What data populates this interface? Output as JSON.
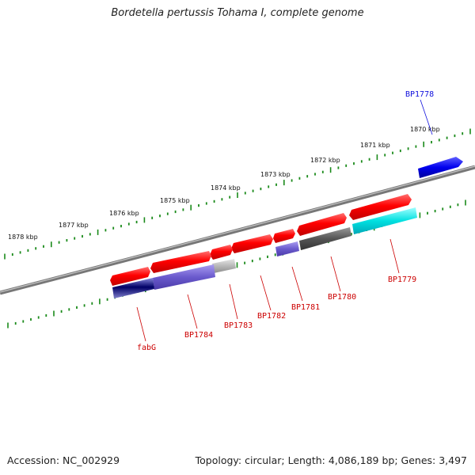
{
  "title": "Bordetella pertussis Tohama I, complete genome",
  "footer": {
    "accession": "Accession: NC_002929",
    "summary": "Topology: circular; Length: 4,086,189 bp; Genes: 3,497"
  },
  "ruler": {
    "labels": [
      "1870 kbp",
      "1871 kbp",
      "1872 kbp",
      "1873 kbp",
      "1874 kbp",
      "1875 kbp",
      "1876 kbp",
      "1877 kbp",
      "1878 kbp"
    ]
  },
  "genes": [
    {
      "name": "BP1778",
      "color": "#0000cc"
    },
    {
      "name": "BP1779",
      "color": "#cc0000"
    },
    {
      "name": "BP1780",
      "color": "#cc0000"
    },
    {
      "name": "BP1781",
      "color": "#cc0000"
    },
    {
      "name": "BP1782",
      "color": "#cc0000"
    },
    {
      "name": "BP1783",
      "color": "#cc0000"
    },
    {
      "name": "BP1784",
      "color": "#cc0000"
    },
    {
      "name": "fabG",
      "color": "#cc0000"
    }
  ],
  "colors": {
    "forward_cds": "#ff0000",
    "reverse_feature": "#0000ee",
    "tick": "#1a8a1a",
    "backbone": "#808080",
    "purple_feature": "#6a5acd",
    "cyan_feature": "#00dddd",
    "dark_feature": "#555555",
    "light_feature": "#b0b0b0"
  }
}
